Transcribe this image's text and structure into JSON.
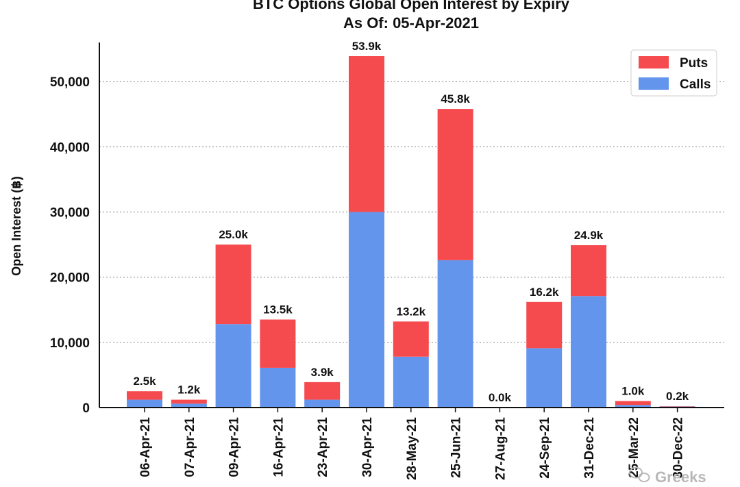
{
  "chart_data": {
    "type": "bar",
    "stacked": true,
    "title": "BTC Options Global Open Interest by Expiry",
    "subtitle": "As Of: 05-Apr-2021",
    "xlabel": "",
    "ylabel": "Open Interest (฿)",
    "ylim": [
      0,
      56000
    ],
    "yticks": [
      0,
      10000,
      20000,
      30000,
      40000,
      50000
    ],
    "ytick_labels": [
      "0",
      "10,000",
      "20,000",
      "30,000",
      "40,000",
      "50,000"
    ],
    "grid": "horizontal dotted",
    "legend_position": "top-right",
    "categories": [
      "06-Apr-21",
      "07-Apr-21",
      "09-Apr-21",
      "16-Apr-21",
      "23-Apr-21",
      "30-Apr-21",
      "28-May-21",
      "25-Jun-21",
      "27-Aug-21",
      "24-Sep-21",
      "31-Dec-21",
      "25-Mar-22",
      "30-Dec-22"
    ],
    "series": [
      {
        "name": "Calls",
        "color": "#6495ed",
        "values": [
          1200,
          600,
          12800,
          6100,
          1200,
          30000,
          7800,
          22600,
          0,
          9100,
          17100,
          400,
          150
        ]
      },
      {
        "name": "Puts",
        "color": "#f54b4f",
        "values": [
          1300,
          600,
          12200,
          7400,
          2700,
          23900,
          5400,
          23200,
          0,
          7100,
          7800,
          600,
          50
        ]
      }
    ],
    "totals_labels": [
      "2.5k",
      "1.2k",
      "25.0k",
      "13.5k",
      "3.9k",
      "53.9k",
      "13.2k",
      "45.8k",
      "0.0k",
      "16.2k",
      "24.9k",
      "1.0k",
      "0.2k"
    ]
  },
  "watermark": {
    "text": "Greeks",
    "icon": "wechat-icon"
  }
}
